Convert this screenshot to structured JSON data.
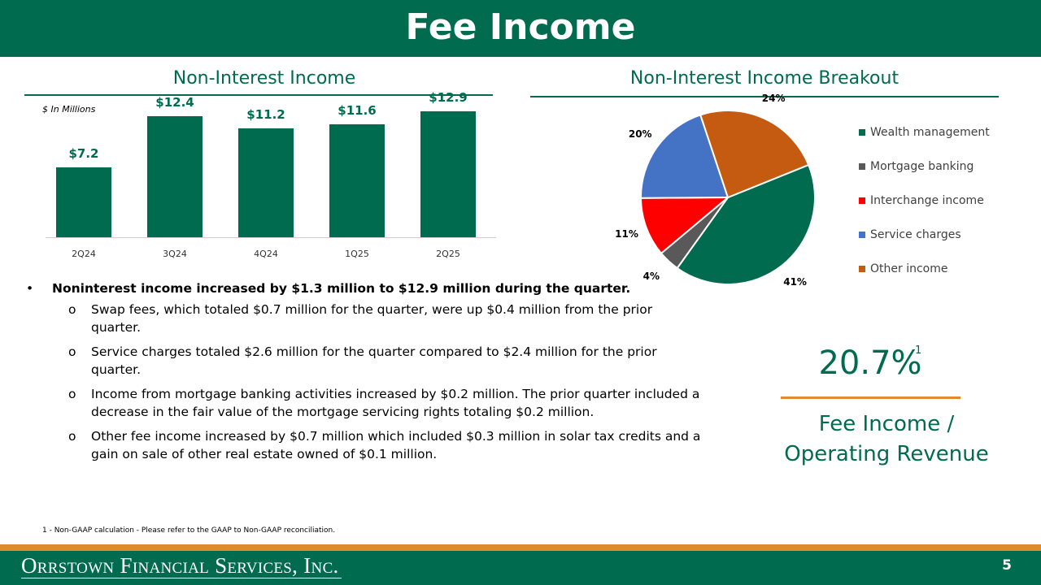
{
  "header": {
    "title": "Fee Income"
  },
  "left_section": {
    "title": "Non-Interest Income"
  },
  "right_section": {
    "title": "Non-Interest Income Breakout"
  },
  "chart_data": [
    {
      "type": "bar",
      "categories": [
        "2Q24",
        "3Q24",
        "4Q24",
        "1Q25",
        "2Q25"
      ],
      "values": [
        7.2,
        12.4,
        11.2,
        11.6,
        12.9
      ],
      "value_labels": [
        "$7.2",
        "$12.4",
        "$11.2",
        "$11.6",
        "$12.9"
      ],
      "units_note": "$ In Millions",
      "ylim": [
        0,
        13.6
      ],
      "color": "#006b4f"
    },
    {
      "type": "pie",
      "categories": [
        "Wealth management",
        "Mortgage banking",
        "Interchange income",
        "Service charges",
        "Other income"
      ],
      "values": [
        41,
        4,
        11,
        20,
        24
      ],
      "labels": [
        "41%",
        "4%",
        "11%",
        "20%",
        "24%"
      ],
      "colors": [
        "#006b4f",
        "#595959",
        "#ff0000",
        "#4472c4",
        "#c55a11"
      ],
      "legend_position": "right"
    }
  ],
  "bullets": {
    "main": "Noninterest income increased by $1.3 million to $12.9 million during the quarter.",
    "subs": [
      "Swap fees, which totaled $0.7 million for the quarter, were up $0.4 million from the prior quarter.",
      "Service charges totaled $2.6 million for the quarter compared to $2.4 million for the prior quarter.",
      "Income from mortgage banking activities increased by $0.2 million. The prior quarter included a decrease in the fair value of the mortgage servicing rights totaling $0.2 million.",
      "Other fee income increased by $0.7 million which included $0.3 million in solar tax credits and a gain on sale of other real estate owned of $0.1 million."
    ]
  },
  "kpi": {
    "value": "20.7%",
    "superscript": "1",
    "label_line1": "Fee Income /",
    "label_line2": "Operating Revenue"
  },
  "footnote": "1 - Non-GAAP calculation - Please refer to the GAAP to Non-GAAP reconciliation.",
  "footer": {
    "company": "Orrstown Financial Services, Inc.",
    "page_number": "5"
  },
  "colors": {
    "brand_green": "#006b4f",
    "accent_orange": "#e08a2c"
  }
}
